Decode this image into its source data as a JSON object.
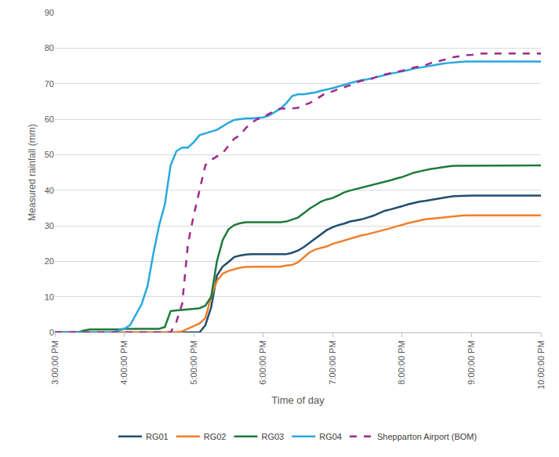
{
  "chart_data": {
    "type": "line",
    "x_label": "Time of day",
    "y_label": "Measured rainfall (mm)",
    "x": [
      900,
      905,
      910,
      915,
      920,
      925,
      930,
      935,
      940,
      945,
      950,
      955,
      960,
      965,
      970,
      975,
      980,
      985,
      990,
      995,
      1000,
      1005,
      1010,
      1015,
      1020,
      1025,
      1030,
      1035,
      1040,
      1045,
      1050,
      1055,
      1060,
      1065,
      1070,
      1075,
      1080,
      1085,
      1090,
      1095,
      1100,
      1105,
      1110,
      1115,
      1120,
      1125,
      1130,
      1135,
      1140,
      1145,
      1150,
      1155,
      1160,
      1165,
      1170,
      1175,
      1180,
      1185,
      1190,
      1195,
      1200,
      1205,
      1210,
      1215,
      1220,
      1225,
      1230,
      1235,
      1240,
      1245,
      1250,
      1255,
      1260,
      1265,
      1270,
      1275,
      1280,
      1285,
      1290,
      1295,
      1300,
      1305,
      1310,
      1315,
      1320
    ],
    "xlim": [
      900,
      1320
    ],
    "xticks": [
      {
        "value": 900,
        "label": "3:00:00 PM"
      },
      {
        "value": 960,
        "label": "4:00:00 PM"
      },
      {
        "value": 1020,
        "label": "5:00:00 PM"
      },
      {
        "value": 1080,
        "label": "6:00:00 PM"
      },
      {
        "value": 1140,
        "label": "7:00:00 PM"
      },
      {
        "value": 1200,
        "label": "8:00:00 PM"
      },
      {
        "value": 1260,
        "label": "9:00:00 PM"
      },
      {
        "value": 1320,
        "label": "10:00:00 PM"
      }
    ],
    "ylim": [
      0,
      90
    ],
    "yticks": [
      0,
      10,
      20,
      30,
      40,
      50,
      60,
      70,
      80,
      90
    ],
    "grid": true,
    "legend": "bottom",
    "series": [
      {
        "name": "RG01",
        "color": "#1f4e6e",
        "line_style": "solid",
        "values": [
          0,
          0,
          0,
          0,
          0,
          0,
          0,
          0,
          0,
          0,
          0,
          0,
          0,
          0,
          0,
          0,
          0,
          0,
          0,
          0,
          0,
          0,
          0,
          0,
          0,
          0,
          2,
          7,
          16,
          18.5,
          19.8,
          21.2,
          21.6,
          21.9,
          22,
          22,
          22,
          22,
          22,
          22,
          22,
          22.4,
          23,
          24,
          25.2,
          26.5,
          27.8,
          28.8,
          29.6,
          30.2,
          30.6,
          31.2,
          31.5,
          31.8,
          32.3,
          32.8,
          33.5,
          34.2,
          34.6,
          35,
          35.5,
          36,
          36.4,
          36.8,
          37,
          37.3,
          37.6,
          37.9,
          38.1,
          38.3,
          38.4,
          38.5,
          38.5,
          38.5,
          38.5,
          38.5,
          38.5,
          38.5,
          38.5,
          38.5,
          38.5,
          38.5,
          38.5,
          38.5,
          38.5
        ]
      },
      {
        "name": "RG02",
        "color": "#f07f2b",
        "line_style": "solid",
        "values": [
          0,
          0,
          0,
          0,
          0,
          0,
          0,
          0,
          0,
          0,
          0,
          0,
          0,
          0,
          0,
          0,
          0,
          0,
          0,
          0,
          0,
          0,
          0.3,
          1,
          1.8,
          2.5,
          4,
          10,
          14.5,
          16.5,
          17.3,
          17.8,
          18.2,
          18.4,
          18.5,
          18.5,
          18.5,
          18.5,
          18.5,
          18.5,
          18.8,
          19,
          19.7,
          21,
          22.5,
          23.3,
          23.8,
          24.2,
          24.9,
          25.4,
          25.9,
          26.4,
          26.8,
          27.3,
          27.6,
          28,
          28.5,
          28.9,
          29.3,
          29.8,
          30.3,
          30.7,
          31.1,
          31.5,
          31.8,
          32,
          32.1,
          32.3,
          32.5,
          32.7,
          32.8,
          32.9,
          32.9,
          32.9,
          32.9,
          32.9,
          32.9,
          32.9,
          32.9,
          32.9,
          32.9,
          32.9,
          32.9,
          32.9,
          32.9
        ]
      },
      {
        "name": "RG03",
        "color": "#1e7a3a",
        "line_style": "solid",
        "values": [
          0,
          0,
          0,
          0,
          0,
          0.5,
          0.8,
          0.8,
          0.8,
          0.8,
          0.8,
          0.8,
          1,
          1,
          1,
          1,
          1,
          1,
          1,
          1.5,
          6,
          6.2,
          6.3,
          6.5,
          6.6,
          6.8,
          7.5,
          10,
          20,
          26,
          29,
          30.2,
          30.7,
          31,
          31,
          31,
          31,
          31,
          31,
          31,
          31.2,
          31.7,
          32.3,
          33.5,
          34.8,
          35.8,
          36.8,
          37.4,
          37.8,
          38.6,
          39.4,
          39.9,
          40.3,
          40.8,
          41.1,
          41.5,
          41.9,
          42.3,
          42.8,
          43.3,
          43.7,
          44.3,
          44.9,
          45.3,
          45.7,
          46,
          46.2,
          46.5,
          46.7,
          46.9,
          46.9,
          47,
          47,
          47,
          47,
          47,
          47,
          47,
          47,
          47,
          47,
          47,
          47,
          47,
          47
        ]
      },
      {
        "name": "RG04",
        "color": "#29a8e0",
        "line_style": "solid",
        "values": [
          0,
          0,
          0,
          0,
          0,
          0,
          0,
          0,
          0,
          0,
          0,
          0.5,
          1,
          2,
          5,
          8,
          13,
          22,
          30,
          36,
          47,
          51,
          52,
          52,
          53.5,
          55.5,
          56,
          56.5,
          57,
          58,
          59,
          59.8,
          60,
          60.2,
          60.2,
          60.3,
          60.5,
          61,
          62,
          63,
          64.5,
          66.5,
          67,
          67,
          67.3,
          67.5,
          68,
          68.3,
          68.7,
          69.2,
          69.7,
          70.2,
          70.6,
          71,
          71.2,
          71.6,
          72,
          72.5,
          72.8,
          73.1,
          73.4,
          73.8,
          74.2,
          74.5,
          74.8,
          75.1,
          75.4,
          75.6,
          75.8,
          76,
          76.1,
          76.2,
          76.2,
          76.2,
          76.2,
          76.2,
          76.2,
          76.2,
          76.2,
          76.2,
          76.2,
          76.2,
          76.2,
          76.2,
          76.2
        ]
      },
      {
        "name": "Shepparton Airport (BOM)",
        "color": "#a0288c",
        "line_style": "dashed",
        "values": [
          0,
          0,
          0,
          0,
          0,
          0,
          0,
          0,
          0,
          0,
          0,
          0,
          0,
          0,
          0,
          0,
          0,
          0,
          0,
          0,
          0,
          3,
          8,
          25,
          33,
          40,
          47,
          48.5,
          49.5,
          50.5,
          52.5,
          54.5,
          55.5,
          57.5,
          59,
          60,
          60.5,
          61.5,
          62.3,
          63,
          63,
          63,
          63.2,
          64,
          64.5,
          65.5,
          66.5,
          67.5,
          67.8,
          68.5,
          69,
          69.5,
          70.3,
          70.8,
          71,
          71.5,
          72.2,
          72.6,
          73,
          73.3,
          73.6,
          74.2,
          74.5,
          74.8,
          75.2,
          75.8,
          76.2,
          76.5,
          77,
          77.5,
          77.8,
          78,
          78.1,
          78.3,
          78.5,
          78.5,
          78.5,
          78.5,
          78.5,
          78.5,
          78.5,
          78.5,
          78.5,
          78.5,
          78.5
        ]
      }
    ]
  }
}
